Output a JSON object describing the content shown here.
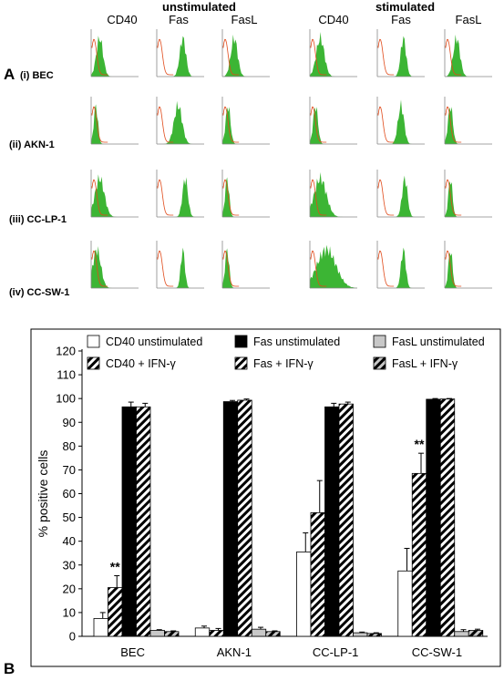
{
  "panel_a": {
    "letter": "A",
    "group_headers": [
      "unstimulated",
      "stimulated"
    ],
    "column_headers": [
      "CD40",
      "Fas",
      "FasL",
      "CD40",
      "Fas",
      "FasL"
    ],
    "row_labels": [
      "(i) BEC",
      "(ii) AKN-1",
      "(iii) CC-LP-1",
      "(iv) CC-SW-1"
    ],
    "histogram_colors": {
      "fill": "#3cb534",
      "control_line": "#e04a1a",
      "axis": "#888888"
    }
  },
  "panel_b": {
    "letter": "B"
  },
  "chart_data": {
    "type": "bar",
    "categories": [
      "BEC",
      "AKN-1",
      "CC-LP-1",
      "CC-SW-1"
    ],
    "ylabel": "% positive cells",
    "xlabel": "",
    "ylim": [
      0,
      120
    ],
    "yticks": [
      0,
      10,
      20,
      30,
      40,
      50,
      60,
      70,
      80,
      90,
      100,
      110,
      120
    ],
    "grid": false,
    "legend_position": "top",
    "series": [
      {
        "name": "CD40 unstimulated",
        "fill": "white",
        "values": [
          7.5,
          3.5,
          35.5,
          27.5
        ],
        "errors": [
          2.5,
          0.8,
          8,
          9.5
        ]
      },
      {
        "name": "CD40 + IFN-γ",
        "fill": "hatch-white",
        "values": [
          20.5,
          2.5,
          52,
          68.5
        ],
        "errors": [
          5,
          0.8,
          13.5,
          8.5
        ]
      },
      {
        "name": "Fas unstimulated",
        "fill": "black",
        "values": [
          96.5,
          98.7,
          96.5,
          99.7
        ],
        "errors": [
          2,
          0.5,
          1.5,
          0.3
        ]
      },
      {
        "name": "Fas + IFN-γ",
        "fill": "hatch-white",
        "values": [
          96.5,
          99.3,
          97.7,
          99.8
        ],
        "errors": [
          1.5,
          0.5,
          0.8,
          0.2
        ]
      },
      {
        "name": "FasL unstimulated",
        "fill": "gray",
        "values": [
          2.5,
          3,
          1.5,
          2
        ],
        "errors": [
          0.3,
          0.8,
          0.3,
          0.8
        ]
      },
      {
        "name": "FasL + IFN-γ",
        "fill": "hatch-gray",
        "values": [
          2,
          2,
          1.2,
          2.5
        ],
        "errors": [
          0.3,
          0.3,
          0.3,
          0.5
        ]
      }
    ],
    "annotations": [
      {
        "text": "**",
        "category": "BEC",
        "series_index": 1,
        "y": 27.5
      },
      {
        "text": "**",
        "category": "CC-SW-1",
        "series_index": 1,
        "y": 79
      }
    ]
  }
}
